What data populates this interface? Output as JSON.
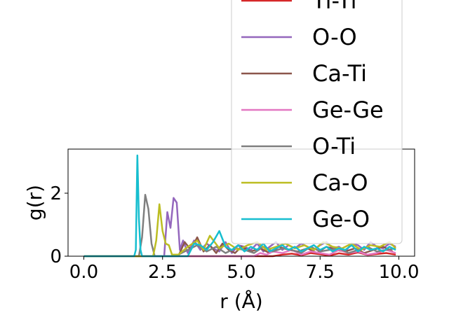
{
  "chart_data": {
    "type": "line",
    "xlabel": "r (Å)",
    "ylabel": "g(r)",
    "xlim": [
      -0.5,
      10.5
    ],
    "ylim": [
      0,
      3.4
    ],
    "x_ticks": [
      0.0,
      2.5,
      5.0,
      7.5,
      10.0
    ],
    "x_tick_labels": [
      "0.0",
      "2.5",
      "5.0",
      "7.5",
      "10.0"
    ],
    "y_ticks": [
      0,
      2
    ],
    "y_tick_labels": [
      "0",
      "2"
    ],
    "grid": false,
    "legend_position": "upper-right, extending above the axes",
    "series": [
      {
        "name": "Ti-Ti",
        "color": "#d62728",
        "x": [
          0,
          6.0,
          6.3,
          6.6,
          6.9,
          7.2,
          7.5,
          7.8,
          8.1,
          8.4,
          8.7,
          9.0,
          9.3,
          9.6,
          9.9
        ],
        "y": [
          0,
          0,
          0.05,
          0.08,
          0.03,
          0.1,
          0.06,
          0.02,
          0.09,
          0.05,
          0.12,
          0.04,
          0.07,
          0.1,
          0.05
        ]
      },
      {
        "name": "O-O",
        "color": "#9467bd",
        "x": [
          0,
          2.55,
          2.65,
          2.75,
          2.85,
          2.95,
          3.05,
          3.15,
          3.3,
          3.5,
          3.7,
          3.9,
          4.1,
          4.3,
          4.5,
          4.7,
          4.9,
          5.1,
          5.3,
          5.5,
          5.7,
          5.9,
          6.1,
          6.3,
          6.5,
          6.7,
          6.9,
          7.1,
          7.3,
          7.5,
          7.7,
          7.9,
          8.1,
          8.3,
          8.5,
          8.7,
          8.9,
          9.1,
          9.3,
          9.5,
          9.7,
          9.9
        ],
        "y": [
          0,
          0,
          1.4,
          0.9,
          1.85,
          1.7,
          0.2,
          0.5,
          0.1,
          0.5,
          0.2,
          0.4,
          0.25,
          0.15,
          0.45,
          0.1,
          0.35,
          0.3,
          0.2,
          0.4,
          0.15,
          0.3,
          0.45,
          0.2,
          0.35,
          0.25,
          0.4,
          0.3,
          0.2,
          0.35,
          0.45,
          0.25,
          0.3,
          0.15,
          0.4,
          0.35,
          0.2,
          0.45,
          0.3,
          0.25,
          0.4,
          0.3
        ]
      },
      {
        "name": "Ca-Ti",
        "color": "#8c564b",
        "x": [
          0,
          3.0,
          3.2,
          3.4,
          3.6,
          3.8,
          4.0,
          4.2,
          4.4,
          4.6,
          4.8,
          5.0,
          5.3,
          5.6,
          5.9,
          6.2,
          6.5,
          6.8,
          7.1,
          7.4,
          7.7,
          8.0,
          8.3,
          8.6,
          8.9,
          9.2,
          9.5,
          9.8
        ],
        "y": [
          0,
          0,
          0.45,
          0.2,
          0.6,
          0.15,
          0.35,
          0.1,
          0.4,
          0.2,
          0.1,
          0.3,
          0.15,
          0.25,
          0.1,
          0.3,
          0.2,
          0.15,
          0.25,
          0.1,
          0.3,
          0.2,
          0.15,
          0.25,
          0.1,
          0.2,
          0.3,
          0.15
        ]
      },
      {
        "name": "Ge-Ge",
        "color": "#e377c2",
        "x": [
          0,
          5.4,
          5.6,
          5.8,
          6.0,
          6.3,
          6.6,
          6.9,
          7.2,
          7.5,
          7.8,
          8.1,
          8.4,
          8.7,
          9.0,
          9.3,
          9.6,
          9.9
        ],
        "y": [
          0,
          0,
          0.1,
          0.05,
          0.15,
          0.1,
          0.2,
          0.05,
          0.15,
          0.1,
          0.05,
          0.2,
          0.1,
          0.15,
          0.05,
          0.1,
          0.2,
          0.1
        ]
      },
      {
        "name": "O-Ti",
        "color": "#7f7f7f",
        "x": [
          0,
          1.75,
          1.85,
          1.95,
          2.05,
          2.15,
          2.25,
          2.4,
          2.6,
          2.8,
          3.0,
          3.3,
          3.6,
          3.9,
          4.2,
          4.5,
          4.8,
          5.1,
          5.4,
          5.7,
          6.0,
          6.3,
          6.6,
          6.9,
          7.2,
          7.5,
          7.8,
          8.1,
          8.4,
          8.7,
          9.0,
          9.3,
          9.6,
          9.9
        ],
        "y": [
          0,
          0,
          0.6,
          1.95,
          1.5,
          0.4,
          0,
          0,
          0,
          0,
          0.05,
          0.2,
          0.35,
          0.15,
          0.3,
          0.1,
          0.25,
          0.2,
          0.1,
          0.3,
          0.15,
          0.25,
          0.2,
          0.1,
          0.3,
          0.15,
          0.2,
          0.25,
          0.1,
          0.2,
          0.3,
          0.15,
          0.2,
          0.25
        ]
      },
      {
        "name": "Ca-O",
        "color": "#bcbd22",
        "x": [
          0,
          2.2,
          2.3,
          2.4,
          2.5,
          2.6,
          2.7,
          2.8,
          3.0,
          3.3,
          3.6,
          3.8,
          4.0,
          4.3,
          4.6,
          4.9,
          5.2,
          5.5,
          5.8,
          6.1,
          6.4,
          6.7,
          7.0,
          7.3,
          7.6,
          7.9,
          8.2,
          8.5,
          8.8,
          9.1,
          9.4,
          9.7,
          9.9
        ],
        "y": [
          0,
          0,
          0.5,
          1.65,
          0.8,
          0.4,
          0.35,
          0.05,
          0.05,
          0.3,
          0.5,
          0.2,
          0.65,
          0.25,
          0.4,
          0.2,
          0.35,
          0.45,
          0.2,
          0.3,
          0.4,
          0.25,
          0.35,
          0.2,
          0.45,
          0.3,
          0.25,
          0.4,
          0.2,
          0.35,
          0.3,
          0.45,
          0.25
        ]
      },
      {
        "name": "Ge-O",
        "color": "#17becf",
        "x": [
          0,
          1.6,
          1.65,
          1.7,
          1.75,
          1.8,
          1.85,
          1.9,
          2.0,
          3.3,
          3.5,
          3.7,
          3.9,
          4.1,
          4.3,
          4.5,
          4.7,
          4.9,
          5.1,
          5.3,
          5.5,
          5.7,
          5.9,
          6.1,
          6.3,
          6.5,
          6.7,
          6.9,
          7.1,
          7.3,
          7.5,
          7.7,
          7.9,
          8.1,
          8.3,
          8.5,
          8.7,
          8.9,
          9.1,
          9.3,
          9.5,
          9.7,
          9.9
        ],
        "y": [
          0,
          0,
          0.2,
          3.2,
          1.2,
          0.2,
          0,
          0,
          0,
          0,
          0.4,
          0.35,
          0.2,
          0.45,
          0.8,
          0.3,
          0.2,
          0.35,
          0.15,
          0.3,
          0.2,
          0.4,
          0.15,
          0.25,
          0.35,
          0.2,
          0.3,
          0.15,
          0.25,
          0.35,
          0.2,
          0.3,
          0.15,
          0.25,
          0.2,
          0.35,
          0.15,
          0.3,
          0.2,
          0.25,
          0.15,
          0.3,
          0.2
        ]
      }
    ]
  }
}
